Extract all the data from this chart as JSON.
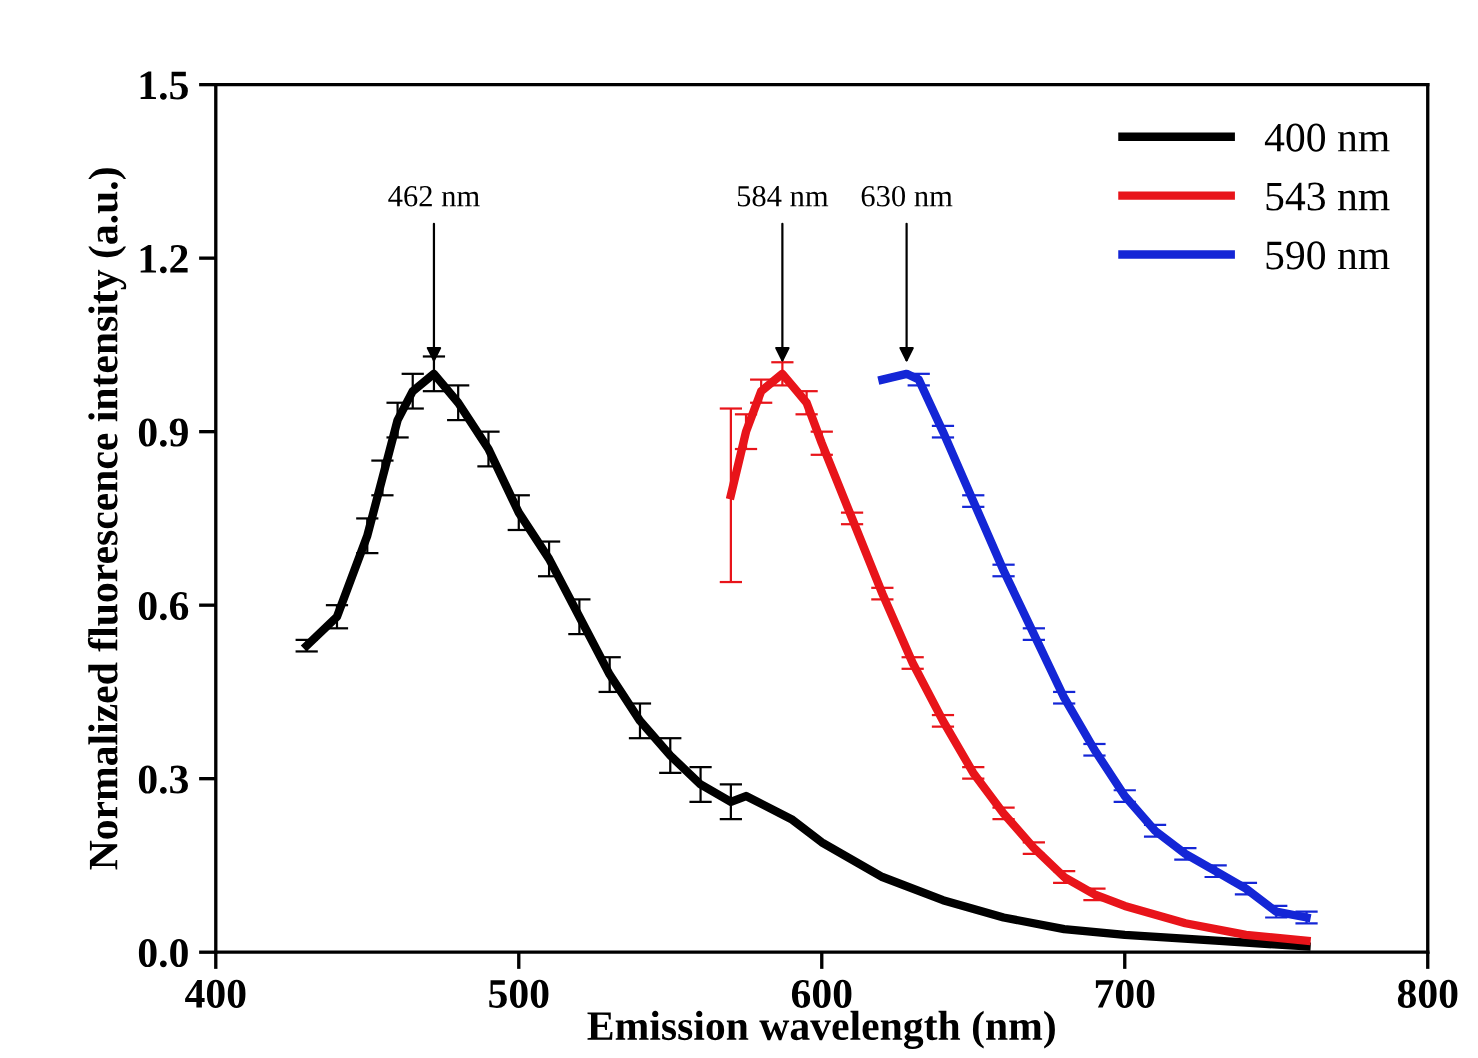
{
  "chart_data": {
    "type": "line",
    "xlabel": "Emission wavelength (nm)",
    "ylabel": "Normalized fluorescence intensity (a.u.)",
    "xlim": [
      400,
      800
    ],
    "xticks": [
      400,
      500,
      600,
      700,
      800
    ],
    "ylim": [
      0.0,
      1.5
    ],
    "yticks": [
      {
        "value": 0.0,
        "label": "0.0"
      },
      {
        "value": 0.3,
        "label": "0.3"
      },
      {
        "value": 0.6,
        "label": "0.6"
      },
      {
        "value": 0.9,
        "label": "0.9"
      },
      {
        "value": 1.2,
        "label": "1.2"
      },
      {
        "value": 1.5,
        "label": "1.5"
      }
    ],
    "legend": "top right",
    "grid": false,
    "marker": "none",
    "line_style": "solid",
    "series": [
      {
        "name": "400 nm",
        "color": "#000000",
        "x": [
          430,
          440,
          450,
          455,
          460,
          465,
          472,
          480,
          490,
          500,
          510,
          520,
          530,
          540,
          550,
          560,
          570,
          575,
          590,
          600,
          620,
          640,
          660,
          680,
          700,
          730,
          760
        ],
        "values": [
          0.53,
          0.58,
          0.72,
          0.82,
          0.92,
          0.97,
          1.0,
          0.95,
          0.87,
          0.76,
          0.68,
          0.58,
          0.48,
          0.4,
          0.34,
          0.29,
          0.26,
          0.27,
          0.23,
          0.19,
          0.13,
          0.09,
          0.06,
          0.04,
          0.03,
          0.02,
          0.01
        ],
        "errors": [
          0.01,
          0.02,
          0.03,
          0.03,
          0.03,
          0.03,
          0.03,
          0.03,
          0.03,
          0.03,
          0.03,
          0.03,
          0.03,
          0.03,
          0.03,
          0.03,
          0.03,
          null,
          null,
          null,
          null,
          null,
          null,
          null,
          null,
          null,
          null
        ]
      },
      {
        "name": "543 nm",
        "color": "#e8141a",
        "x": [
          570,
          575,
          580,
          587,
          595,
          600,
          610,
          620,
          630,
          640,
          650,
          660,
          670,
          680,
          690,
          700,
          720,
          740,
          760
        ],
        "values": [
          0.79,
          0.9,
          0.97,
          1.0,
          0.95,
          0.88,
          0.75,
          0.62,
          0.5,
          0.4,
          0.31,
          0.24,
          0.18,
          0.13,
          0.1,
          0.08,
          0.05,
          0.03,
          0.02
        ],
        "errors": [
          0.15,
          0.03,
          0.02,
          0.02,
          0.02,
          0.02,
          0.01,
          0.01,
          0.01,
          0.01,
          0.01,
          0.01,
          0.01,
          0.01,
          0.01,
          null,
          null,
          null,
          null
        ]
      },
      {
        "name": "590 nm",
        "color": "#1426d6",
        "x": [
          620,
          628,
          632,
          640,
          650,
          660,
          670,
          680,
          690,
          700,
          710,
          720,
          730,
          740,
          750,
          760
        ],
        "values": [
          0.99,
          1.0,
          0.99,
          0.9,
          0.78,
          0.66,
          0.55,
          0.44,
          0.35,
          0.27,
          0.21,
          0.17,
          0.14,
          0.11,
          0.07,
          0.06
        ],
        "errors": [
          null,
          null,
          0.01,
          0.01,
          0.01,
          0.01,
          0.01,
          0.01,
          0.01,
          0.01,
          0.01,
          0.01,
          0.01,
          0.01,
          0.01,
          0.01
        ]
      }
    ],
    "annotations": [
      {
        "text": "462 nm",
        "x": 472,
        "y": 1.0
      },
      {
        "text": "584 nm",
        "x": 587,
        "y": 1.0
      },
      {
        "text": "630 nm",
        "x": 628,
        "y": 1.0
      }
    ]
  }
}
